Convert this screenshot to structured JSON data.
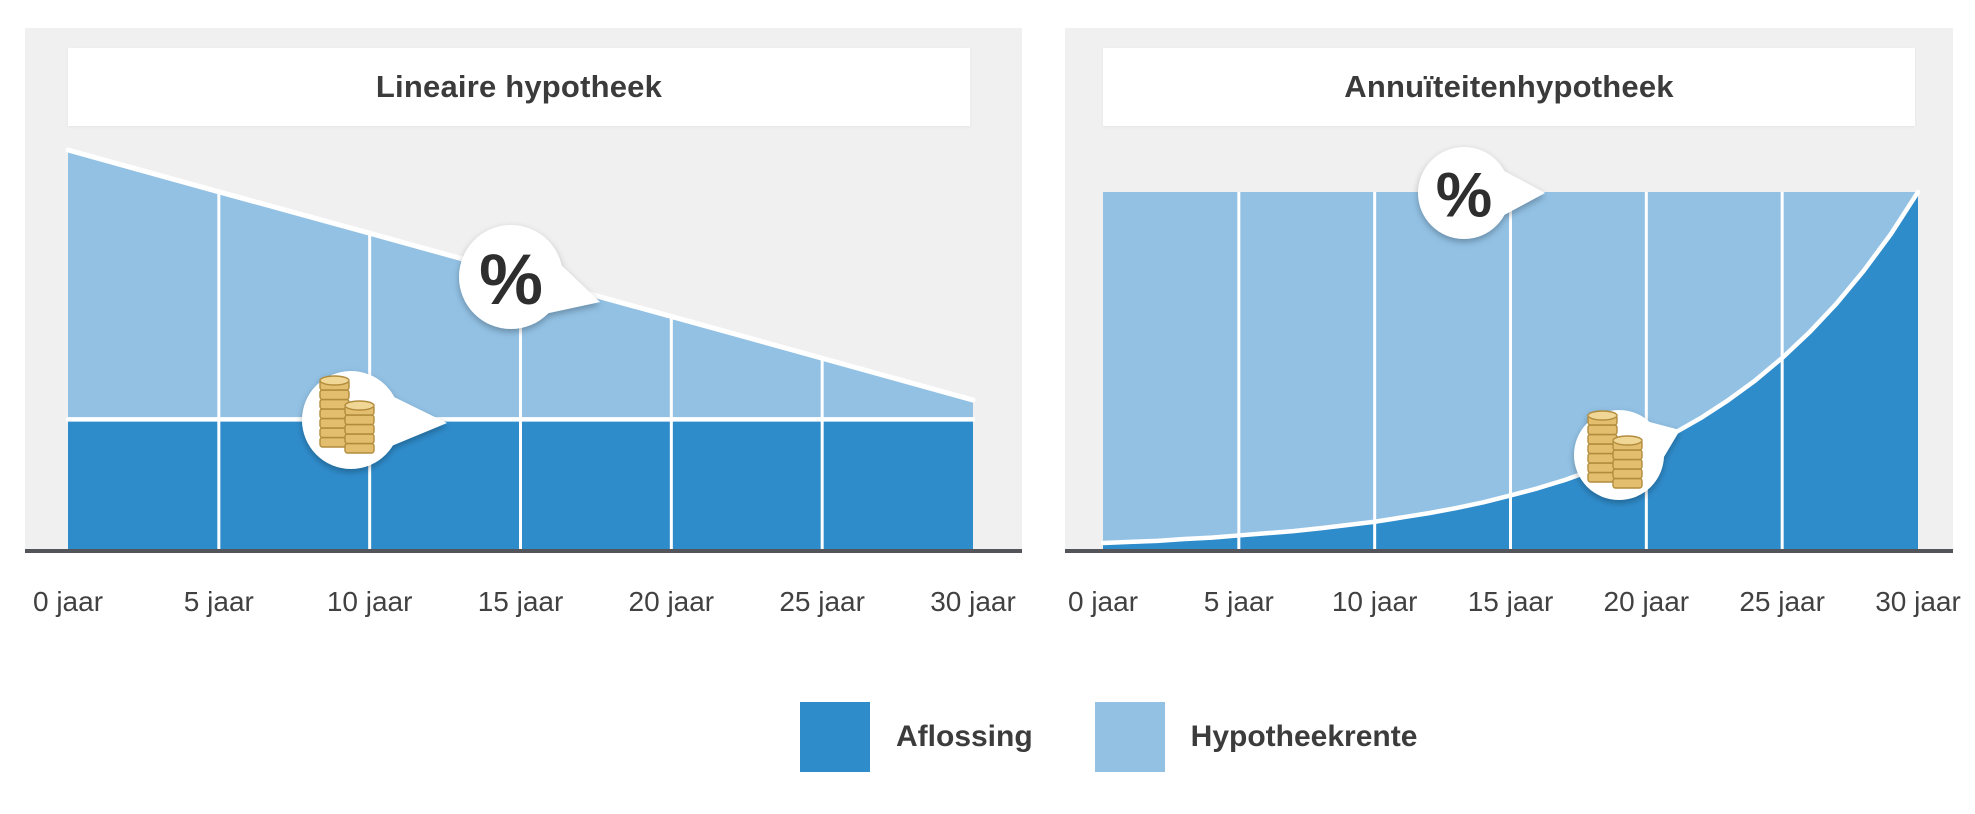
{
  "colors": {
    "aflossing": "#2F8CCB",
    "hypotheekrente": "#92C1E4",
    "panel_background": "#F0F0F1",
    "axis": "#54555A",
    "label_text": "#414141",
    "title_text": "#3B3B3B",
    "gridline": "#FFFFFF",
    "bubble_background": "#FFFFFF",
    "percent_glyph": "#2D2D2D",
    "coin_fill": "#E3BE6E",
    "coin_edge": "#B28C3E",
    "coin_top": "#F0D795"
  },
  "legend": {
    "items": [
      {
        "label": "Aflossing",
        "color": "#2F8CCB"
      },
      {
        "label": "Hypotheekrente",
        "color": "#92C1E4"
      }
    ]
  },
  "chart_data": [
    {
      "type": "area",
      "title": "Lineaire hypotheek",
      "stacked": true,
      "grid": "vertical-white",
      "legend_position": "bottom-shared",
      "ylim": [
        0,
        1
      ],
      "categories": [
        "0 jaar",
        "5 jaar",
        "10 jaar",
        "15 jaar",
        "20 jaar",
        "25 jaar",
        "30 jaar"
      ],
      "x_years": [
        0,
        5,
        10,
        15,
        20,
        25,
        30
      ],
      "series": [
        {
          "name": "Aflossing",
          "values": [
            0.33,
            0.33,
            0.33,
            0.33,
            0.33,
            0.33,
            0.33
          ]
        },
        {
          "name": "Hypotheekrente",
          "values": [
            0.67,
            0.566,
            0.463,
            0.359,
            0.256,
            0.152,
            0.048
          ]
        }
      ],
      "annotations": [
        {
          "icon": "percent-icon",
          "meaning": "hypotheekrente",
          "anchor_year": 17.6
        },
        {
          "icon": "coins-icon",
          "meaning": "aflossing",
          "anchor_year": 12.6
        }
      ]
    },
    {
      "type": "area",
      "title": "Annuïteitenhypotheek",
      "stacked": true,
      "grid": "vertical-white",
      "legend_position": "bottom-shared",
      "ylim": [
        0,
        1
      ],
      "categories": [
        "0 jaar",
        "5 jaar",
        "10 jaar",
        "15 jaar",
        "20 jaar",
        "25 jaar",
        "30 jaar"
      ],
      "x_years": [
        0,
        1,
        2,
        3,
        4,
        5,
        6,
        7,
        8,
        9,
        10,
        11,
        12,
        13,
        14,
        15,
        16,
        17,
        18,
        19,
        20,
        21,
        22,
        23,
        24,
        25,
        26,
        27,
        28,
        29,
        30
      ],
      "series": [
        {
          "name": "Aflossing",
          "values": [
            0.025,
            0.028,
            0.031,
            0.036,
            0.04,
            0.046,
            0.052,
            0.058,
            0.066,
            0.075,
            0.084,
            0.096,
            0.108,
            0.122,
            0.138,
            0.157,
            0.177,
            0.2,
            0.227,
            0.257,
            0.29,
            0.329,
            0.372,
            0.421,
            0.476,
            0.539,
            0.61,
            0.69,
            0.781,
            0.883,
            1.0
          ]
        },
        {
          "name": "Hypotheekrente",
          "values": [
            0.975,
            0.972,
            0.969,
            0.964,
            0.96,
            0.954,
            0.948,
            0.942,
            0.934,
            0.925,
            0.916,
            0.904,
            0.892,
            0.878,
            0.862,
            0.843,
            0.823,
            0.8,
            0.773,
            0.743,
            0.71,
            0.671,
            0.628,
            0.579,
            0.524,
            0.461,
            0.39,
            0.31,
            0.219,
            0.117,
            0.0
          ]
        }
      ],
      "annotations": [
        {
          "icon": "percent-icon",
          "meaning": "hypotheekrente",
          "anchor_year": 16.3
        },
        {
          "icon": "coins-icon",
          "meaning": "aflossing",
          "anchor_year": 21.2
        }
      ]
    }
  ]
}
